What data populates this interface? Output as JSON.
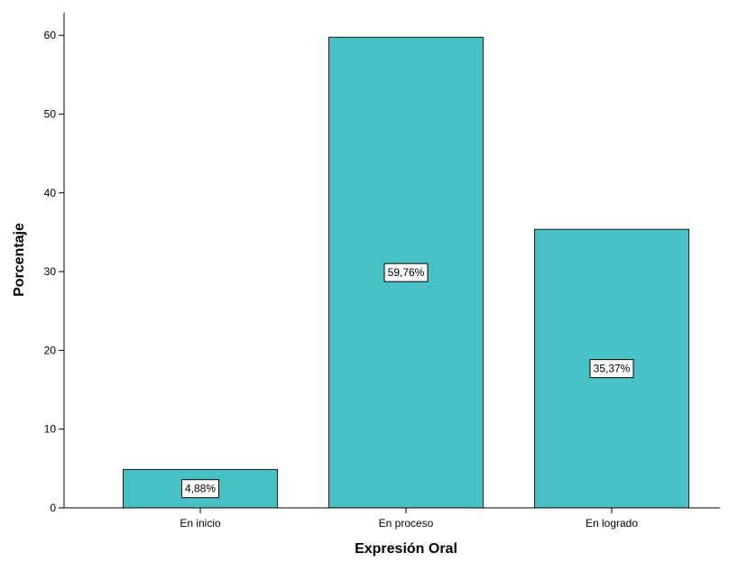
{
  "chart_data": {
    "type": "bar",
    "categories": [
      "En inicio",
      "En proceso",
      "En logrado"
    ],
    "values": [
      4.88,
      59.76,
      35.37
    ],
    "data_labels": [
      "4,88%",
      "59,76%",
      "35,37%"
    ],
    "title": "",
    "xlabel": "Expresión Oral",
    "ylabel": "Porcentaje",
    "ylim": [
      0,
      62.5
    ],
    "yticks": [
      0,
      10,
      20,
      30,
      40,
      50,
      60
    ],
    "grid": false,
    "bar_color": "#48C1C4",
    "bar_edge_color": "#1E1E1E"
  }
}
